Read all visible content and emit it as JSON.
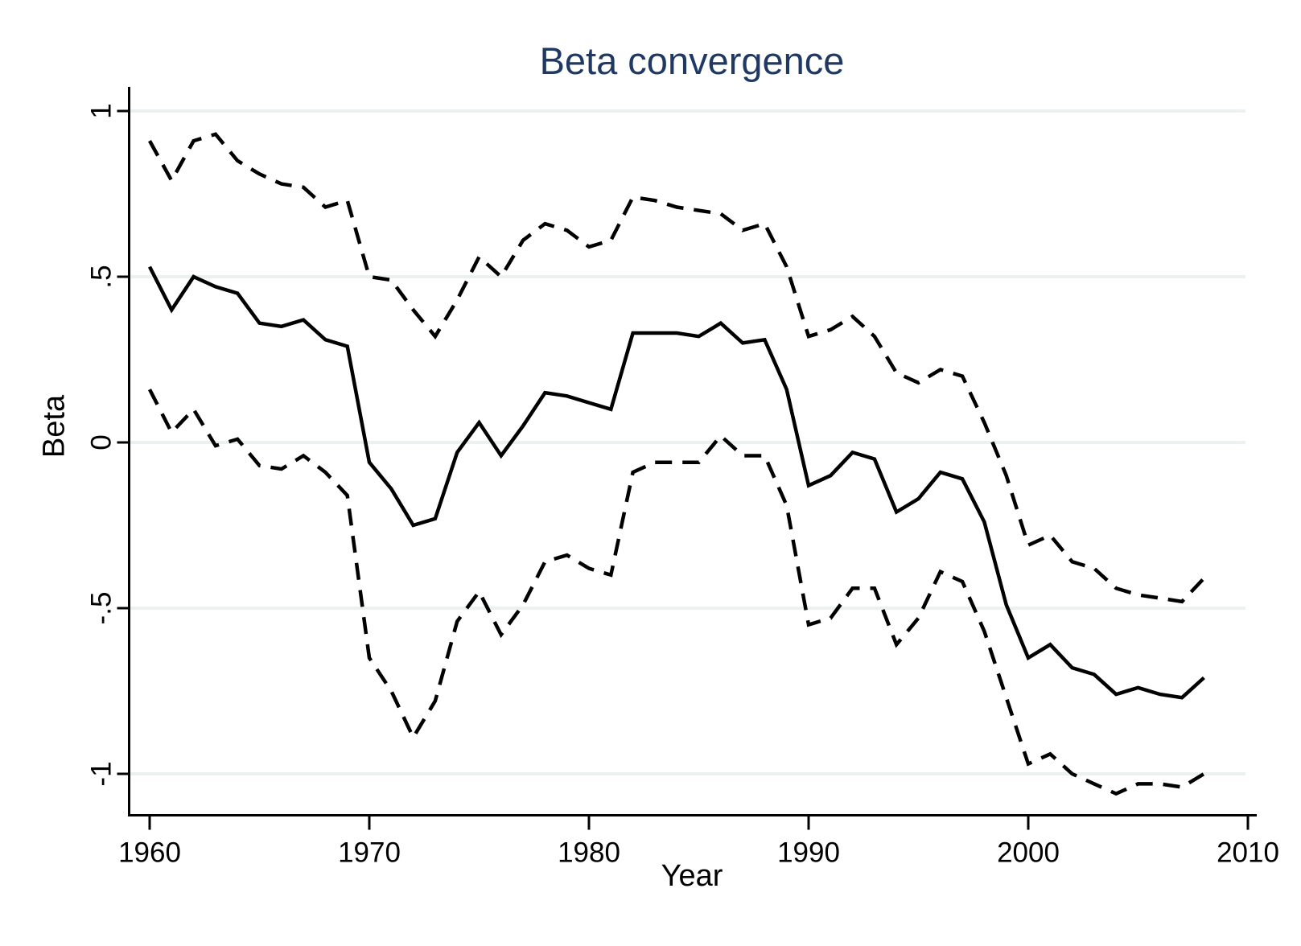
{
  "title": "Beta convergence",
  "colors": {
    "title_text": "#1f3864",
    "axis_text": "#000000",
    "line": "#000000",
    "gridline": "#e9f1f1",
    "background": "#ffffff"
  },
  "chart_data": {
    "type": "line",
    "title": "Beta convergence",
    "xlabel": "Year",
    "ylabel": "Beta",
    "grid": "horizontal",
    "legend": "none",
    "xlim": [
      1959.0,
      2010.4
    ],
    "ylim": [
      -1.12,
      1.07
    ],
    "x_ticks": [
      1960,
      1970,
      1980,
      1990,
      2000,
      2010
    ],
    "x_tick_labels": [
      "1960",
      "1970",
      "1980",
      "1990",
      "2000",
      "2010"
    ],
    "y_ticks": [
      1,
      0.5,
      0,
      -0.5,
      -1
    ],
    "y_tick_labels": [
      "1",
      ".5",
      "0",
      "-.5",
      "-1"
    ],
    "x": [
      1960,
      1961,
      1962,
      1963,
      1964,
      1965,
      1966,
      1967,
      1968,
      1969,
      1970,
      1971,
      1972,
      1973,
      1974,
      1975,
      1976,
      1977,
      1978,
      1979,
      1980,
      1981,
      1982,
      1983,
      1984,
      1985,
      1986,
      1987,
      1988,
      1989,
      1990,
      1991,
      1992,
      1993,
      1994,
      1995,
      1996,
      1997,
      1998,
      1999,
      2000,
      2001,
      2002,
      2003,
      2004,
      2005,
      2006,
      2007,
      2008
    ],
    "series": [
      {
        "name": "beta-estimate",
        "style": "solid",
        "values": [
          0.53,
          0.4,
          0.5,
          0.47,
          0.45,
          0.36,
          0.35,
          0.37,
          0.31,
          0.29,
          -0.06,
          -0.14,
          -0.25,
          -0.23,
          -0.03,
          0.06,
          -0.04,
          0.05,
          0.15,
          0.14,
          0.12,
          0.1,
          0.33,
          0.33,
          0.33,
          0.32,
          0.36,
          0.3,
          0.31,
          0.16,
          -0.13,
          -0.1,
          -0.03,
          -0.05,
          -0.21,
          -0.17,
          -0.09,
          -0.11,
          -0.24,
          -0.49,
          -0.65,
          -0.61,
          -0.68,
          -0.7,
          -0.76,
          -0.74,
          -0.76,
          -0.77,
          -0.71
        ]
      },
      {
        "name": "upper-confidence-band",
        "style": "dashed",
        "values": [
          0.91,
          0.79,
          0.91,
          0.93,
          0.85,
          0.81,
          0.78,
          0.77,
          0.71,
          0.73,
          0.5,
          0.49,
          0.4,
          0.32,
          0.43,
          0.56,
          0.5,
          0.61,
          0.66,
          0.64,
          0.59,
          0.61,
          0.74,
          0.73,
          0.71,
          0.7,
          0.69,
          0.64,
          0.66,
          0.53,
          0.32,
          0.34,
          0.38,
          0.32,
          0.21,
          0.18,
          0.22,
          0.2,
          0.06,
          -0.1,
          -0.31,
          -0.28,
          -0.36,
          -0.38,
          -0.44,
          -0.46,
          -0.47,
          -0.48,
          -0.41
        ]
      },
      {
        "name": "lower-confidence-band",
        "style": "dashed",
        "values": [
          0.16,
          0.03,
          0.1,
          -0.01,
          0.01,
          -0.07,
          -0.08,
          -0.04,
          -0.09,
          -0.16,
          -0.65,
          -0.75,
          -0.89,
          -0.78,
          -0.54,
          -0.45,
          -0.58,
          -0.49,
          -0.36,
          -0.34,
          -0.38,
          -0.4,
          -0.09,
          -0.06,
          -0.06,
          -0.06,
          0.02,
          -0.04,
          -0.04,
          -0.19,
          -0.55,
          -0.53,
          -0.44,
          -0.44,
          -0.61,
          -0.53,
          -0.39,
          -0.42,
          -0.57,
          -0.77,
          -0.97,
          -0.94,
          -1.0,
          -1.03,
          -1.06,
          -1.03,
          -1.03,
          -1.04,
          -1.0
        ]
      }
    ]
  }
}
